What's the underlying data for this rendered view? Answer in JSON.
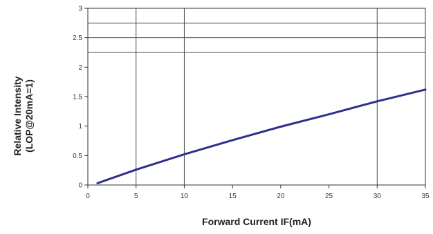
{
  "chart_data": {
    "type": "line",
    "title": "",
    "xlabel": "Forward Current IF(mA)",
    "ylabel_lines": [
      "Relative Intensity",
      "(LOP@20mA=1)"
    ],
    "xlim": [
      0,
      35
    ],
    "ylim": [
      0,
      3
    ],
    "xticks": [
      0,
      5,
      10,
      15,
      20,
      25,
      30,
      35
    ],
    "xtick_labels": [
      "0",
      "5",
      "10",
      "15",
      "20",
      "25",
      "30",
      "35"
    ],
    "yticks": [
      0,
      0.5,
      1,
      1.5,
      2,
      2.5,
      3
    ],
    "ytick_labels": [
      "0",
      "0.5",
      "1",
      "1.5",
      "2",
      "2.5",
      "3"
    ],
    "x_gridlines": [
      5,
      10,
      30
    ],
    "y_gridlines": [
      2.25,
      2.5,
      2.75,
      3
    ],
    "grid": true,
    "legend": "none",
    "series": [
      {
        "color": "#2e2e8f",
        "x": [
          1,
          5,
          10,
          15,
          20,
          25,
          30,
          35
        ],
        "y": [
          0.03,
          0.26,
          0.52,
          0.76,
          0.99,
          1.2,
          1.42,
          1.62
        ]
      }
    ]
  }
}
